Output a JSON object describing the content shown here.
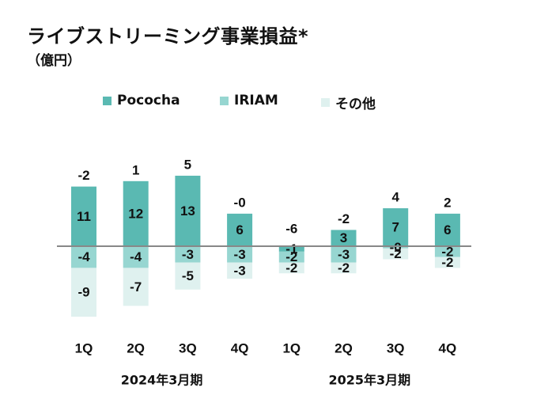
{
  "chart_data": {
    "type": "bar",
    "stacked": true,
    "title": "ライブストリーミング事業損益*",
    "subtitle": "（億円）",
    "categories": [
      "1Q",
      "2Q",
      "3Q",
      "4Q",
      "1Q",
      "2Q",
      "3Q",
      "4Q"
    ],
    "year_groups": [
      {
        "label": "2024年3月期",
        "quarters": 4
      },
      {
        "label": "2025年3月期",
        "quarters": 4
      }
    ],
    "series": [
      {
        "name": "Pococha",
        "color": "#5ab9b2",
        "values": [
          11,
          12,
          13,
          6,
          -1,
          3,
          7,
          6
        ],
        "labels": [
          "11",
          "12",
          "13",
          "6",
          "-1",
          "3",
          "7",
          "6"
        ]
      },
      {
        "name": "IRIAM",
        "color": "#97d6d1",
        "values": [
          -4,
          -4,
          -3,
          -3,
          -2,
          -3,
          -0.4,
          -2
        ],
        "labels": [
          "-4",
          "-4",
          "-3",
          "-3",
          "-2",
          "-3",
          "-0",
          "-2"
        ]
      },
      {
        "name": "その他",
        "color": "#dff1ef",
        "values": [
          -9,
          -7,
          -5,
          -3,
          -2,
          -2,
          -2,
          -2
        ],
        "labels": [
          "-9",
          "-7",
          "-5",
          "-3",
          "-2",
          "-2",
          "-2",
          "-2"
        ]
      }
    ],
    "totals": [
      -2,
      1,
      5,
      0,
      -6,
      -2,
      4,
      2
    ],
    "total_labels": [
      "-2",
      "1",
      "5",
      "-0",
      "-6",
      "-2",
      "4",
      "2"
    ],
    "ylim": [
      -16,
      16
    ],
    "grid": false,
    "legend": "top"
  }
}
